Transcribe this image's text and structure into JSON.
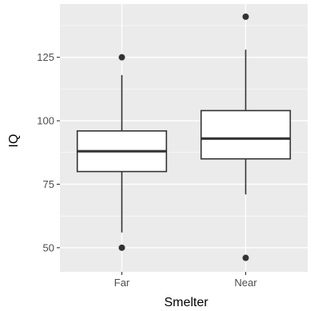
{
  "chart_data": {
    "type": "boxplot",
    "xlabel": "Smelter",
    "ylabel": "IQ",
    "categories": [
      "Far",
      "Near"
    ],
    "ylim": [
      40.5,
      146
    ],
    "y_ticks": [
      50,
      75,
      100,
      125
    ],
    "grid": true,
    "boxes": [
      {
        "category": "Far",
        "whisker_low": 56,
        "q1": 80,
        "median": 88,
        "q3": 96,
        "whisker_high": 118,
        "outliers": [
          50,
          125
        ]
      },
      {
        "category": "Near",
        "whisker_low": 71,
        "q1": 85,
        "median": 93,
        "q3": 104,
        "whisker_high": 128,
        "outliers": [
          46,
          141
        ]
      }
    ]
  },
  "colors": {
    "panel_background": "#ebebeb",
    "grid": "#ffffff",
    "box_fill": "#ffffff",
    "box_stroke": "#333333",
    "points": "#333333",
    "tick_text": "#4d4d4d",
    "tick_mark": "#333333",
    "title_text": "#000000"
  }
}
